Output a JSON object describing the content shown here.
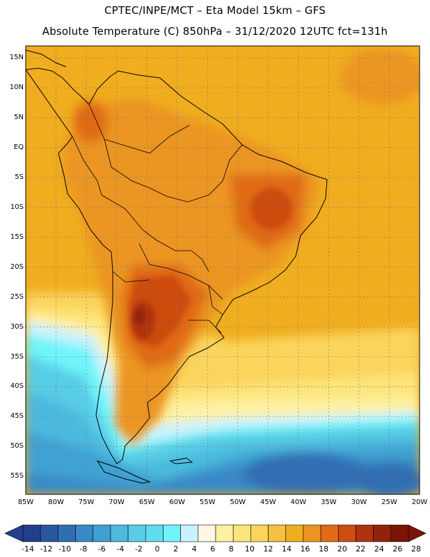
{
  "header": {
    "line1": "CPTEC/INPE/MCT –  Eta Model 15km – GFS",
    "line2": "Absolute Temperature (C) 850hPa – 31/12/2020 12UTC fct=131h"
  },
  "map": {
    "variable": "Absolute Temperature",
    "units": "C",
    "level": "850hPa",
    "model": "Eta Model 15km",
    "driver": "GFS",
    "run": "31/12/2020 12UTC",
    "forecast_hour": "131h",
    "lat_labels": [
      "15N",
      "10N",
      "5N",
      "EQ",
      "5S",
      "10S",
      "15S",
      "20S",
      "25S",
      "30S",
      "35S",
      "40S",
      "45S",
      "50S",
      "55S"
    ],
    "lon_labels": [
      "85W",
      "80W",
      "75W",
      "70W",
      "65W",
      "60W",
      "55W",
      "50W",
      "45W",
      "40W",
      "35W",
      "30W",
      "25W",
      "20W"
    ],
    "lat_range": [
      17,
      -58
    ],
    "lon_range": [
      -85,
      -20
    ]
  },
  "colorbar": {
    "labels": [
      "-14",
      "-12",
      "-10",
      "-8",
      "-6",
      "-4",
      "-2",
      "0",
      "2",
      "4",
      "6",
      "8",
      "10",
      "12",
      "14",
      "16",
      "18",
      "20",
      "22",
      "24",
      "26",
      "28"
    ],
    "colors": [
      "#233f8c",
      "#2a56a0",
      "#306eb4",
      "#3989c6",
      "#3fa1d2",
      "#4cb9dd",
      "#58cde6",
      "#60dcef",
      "#6ff4fa",
      "#cbf2fc",
      "#fff6e3",
      "#fff1a3",
      "#fde57a",
      "#fbd45c",
      "#f5c142",
      "#f0ad1f",
      "#eb9521",
      "#e06b16",
      "#cc4c11",
      "#b1320e",
      "#93220b",
      "#7a1508"
    ],
    "under_color": "#233f8c",
    "over_color": "#7a1508"
  }
}
